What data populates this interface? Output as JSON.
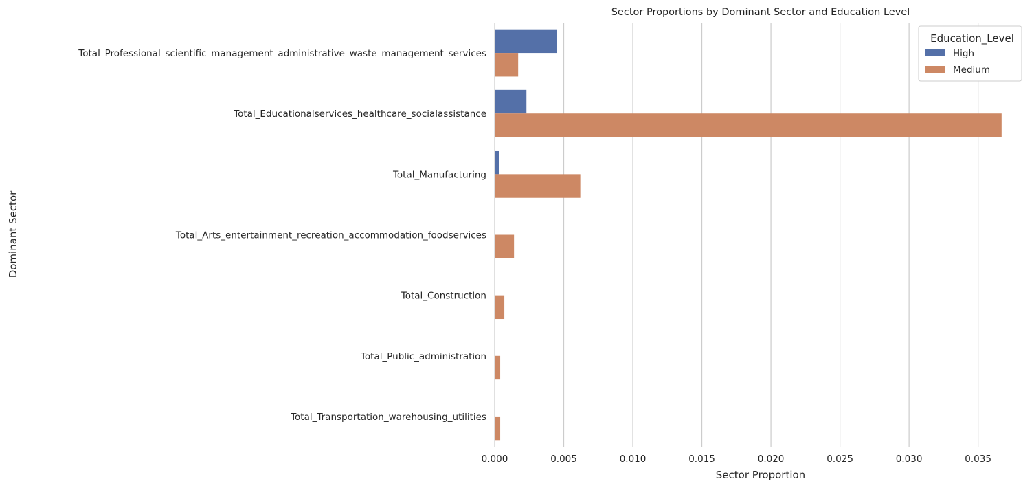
{
  "chart_data": {
    "type": "bar",
    "orientation": "horizontal",
    "title": "Sector Proportions by Dominant Sector and Education Level",
    "xlabel": "Sector Proportion",
    "ylabel": "Dominant Sector",
    "xlim": [
      0,
      0.0385
    ],
    "xticks": [
      0.0,
      0.005,
      0.01,
      0.015,
      0.02,
      0.025,
      0.03,
      0.035
    ],
    "xtick_labels": [
      "0.000",
      "0.005",
      "0.010",
      "0.015",
      "0.020",
      "0.025",
      "0.030",
      "0.035"
    ],
    "grid": "vertical",
    "categories": [
      "Total_Professional_scientific_management_administrative_waste_management_services",
      "Total_Educationalservices_healthcare_socialassistance",
      "Total_Manufacturing",
      "Total_Arts_entertainment_recreation_accommodation_foodservices",
      "Total_Construction",
      "Total_Public_administration",
      "Total_Transportation_warehousing_utilities"
    ],
    "series": [
      {
        "name": "High",
        "color": "#5470a8",
        "values": [
          0.0045,
          0.0023,
          0.0003,
          0.0,
          0.0,
          0.0,
          0.0
        ]
      },
      {
        "name": "Medium",
        "color": "#cd8864",
        "values": [
          0.0017,
          0.0367,
          0.0062,
          0.0014,
          0.0007,
          0.0004,
          0.0004
        ]
      }
    ],
    "legend": {
      "title": "Education_Level",
      "position": "top-right"
    }
  }
}
